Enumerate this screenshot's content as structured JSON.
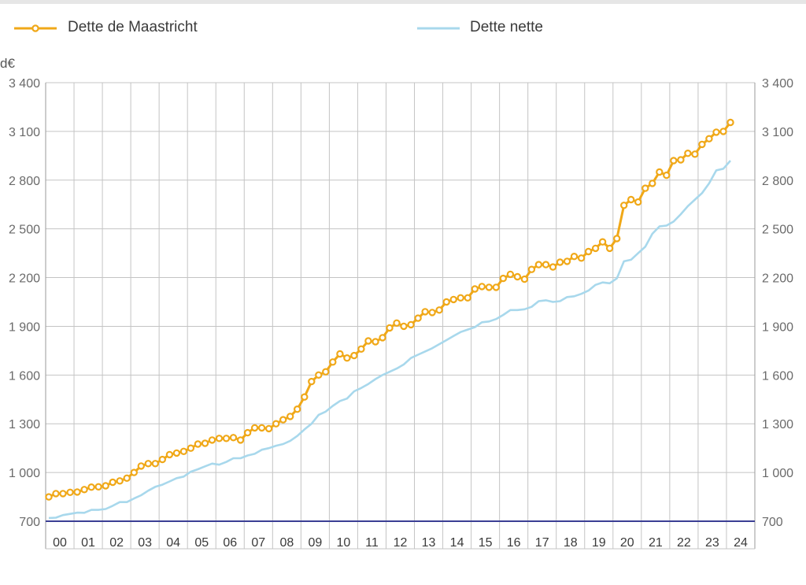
{
  "chart_data": {
    "type": "line",
    "unit_label": "d€",
    "ylim": [
      700,
      3400
    ],
    "yticks": [
      700,
      1000,
      1300,
      1600,
      1900,
      2200,
      2500,
      2800,
      3100,
      3400
    ],
    "ytick_labels": [
      "700",
      "1 000",
      "1 300",
      "1 600",
      "1 900",
      "2 200",
      "2 500",
      "2 800",
      "3 100",
      "3 400"
    ],
    "xtick_labels": [
      "00",
      "01",
      "02",
      "03",
      "04",
      "05",
      "06",
      "07",
      "08",
      "09",
      "10",
      "11",
      "12",
      "13",
      "14",
      "15",
      "16",
      "17",
      "18",
      "19",
      "20",
      "21",
      "22",
      "23",
      "24"
    ],
    "grid": true,
    "legend_position": "top",
    "series": [
      {
        "name": "Dette de Maastricht",
        "color": "#f0a818",
        "marker": "circle",
        "values": [
          850,
          870,
          870,
          878,
          880,
          895,
          910,
          912,
          918,
          940,
          948,
          965,
          1000,
          1040,
          1055,
          1055,
          1080,
          1110,
          1120,
          1130,
          1150,
          1175,
          1180,
          1200,
          1210,
          1210,
          1215,
          1200,
          1245,
          1275,
          1275,
          1270,
          1300,
          1325,
          1345,
          1390,
          1465,
          1560,
          1600,
          1620,
          1680,
          1730,
          1705,
          1720,
          1760,
          1810,
          1805,
          1830,
          1890,
          1920,
          1900,
          1910,
          1950,
          1990,
          1985,
          2000,
          2050,
          2065,
          2075,
          2075,
          2130,
          2145,
          2140,
          2140,
          2195,
          2220,
          2205,
          2190,
          2250,
          2280,
          2280,
          2265,
          2295,
          2300,
          2330,
          2320,
          2360,
          2380,
          2420,
          2380,
          2440,
          2645,
          2680,
          2665,
          2750,
          2780,
          2850,
          2830,
          2920,
          2925,
          2965,
          2960,
          3020,
          3055,
          3095,
          3100,
          3155
        ]
      },
      {
        "name": "Dette nette",
        "color": "#a8d8ec",
        "marker": "none",
        "values": [
          720,
          722,
          738,
          745,
          753,
          752,
          770,
          770,
          775,
          795,
          818,
          818,
          840,
          860,
          888,
          912,
          925,
          945,
          965,
          975,
          1005,
          1020,
          1038,
          1055,
          1048,
          1065,
          1088,
          1088,
          1105,
          1115,
          1140,
          1150,
          1165,
          1175,
          1195,
          1225,
          1265,
          1300,
          1355,
          1375,
          1410,
          1440,
          1455,
          1500,
          1520,
          1545,
          1575,
          1600,
          1620,
          1640,
          1665,
          1705,
          1725,
          1745,
          1765,
          1790,
          1815,
          1840,
          1865,
          1880,
          1895,
          1925,
          1930,
          1945,
          1970,
          2000,
          2000,
          2005,
          2020,
          2055,
          2060,
          2050,
          2055,
          2080,
          2085,
          2100,
          2120,
          2155,
          2170,
          2165,
          2195,
          2300,
          2310,
          2350,
          2390,
          2470,
          2515,
          2520,
          2545,
          2590,
          2640,
          2680,
          2720,
          2780,
          2860,
          2870,
          2920
        ]
      }
    ]
  }
}
